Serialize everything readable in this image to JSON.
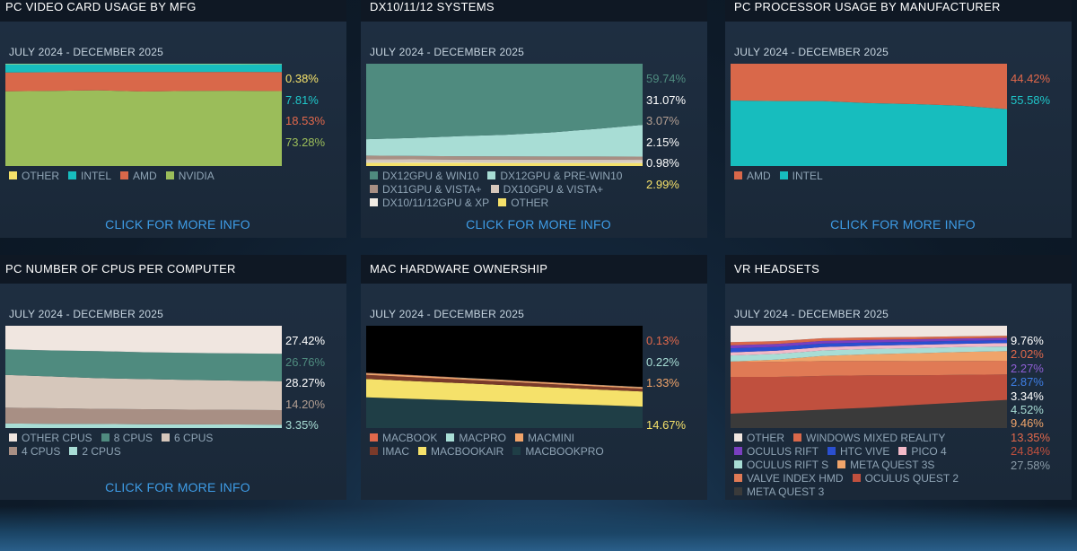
{
  "period": "JULY 2024 - DECEMBER 2025",
  "more_label": "CLICK FOR MORE INFO",
  "panels": [
    {
      "id": "p1",
      "title": "PC VIDEO CARD USAGE BY MFG",
      "show_more": true,
      "labels": [
        {
          "text": "0.38%",
          "color": "#f5e16a"
        },
        {
          "text": "7.81%",
          "color": "#1fc6c9"
        },
        {
          "text": "18.53%",
          "color": "#e0684b"
        },
        {
          "text": "73.28%",
          "color": "#9bbd5a"
        }
      ],
      "legend": [
        {
          "name": "OTHER",
          "color": "#f5e16a"
        },
        {
          "name": "INTEL",
          "color": "#17bdbe"
        },
        {
          "name": "AMD",
          "color": "#d9684a"
        },
        {
          "name": "NVIDIA",
          "color": "#9bbd5a"
        }
      ]
    },
    {
      "id": "p2",
      "title": "DX10/11/12 SYSTEMS",
      "show_more": true,
      "labels": [
        {
          "text": "59.74%",
          "color": "#4f8b7f"
        },
        {
          "text": "31.07%",
          "color": "#ffffff"
        },
        {
          "text": "3.07%",
          "color": "#b29e92"
        },
        {
          "text": "2.15%",
          "color": "#ffffff"
        },
        {
          "text": "0.98%",
          "color": "#ffffff"
        },
        {
          "text": "2.99%",
          "color": "#f5e16a"
        }
      ],
      "legend": [
        {
          "name": "DX12GPU & WIN10",
          "color": "#4f8b7f"
        },
        {
          "name": "DX12GPU & PRE-WIN10",
          "color": "#a8ddd5"
        },
        {
          "name": "DX11GPU & VISTA+",
          "color": "#a88f84"
        },
        {
          "name": "DX10GPU & VISTA+",
          "color": "#d6c7bb"
        },
        {
          "name": "DX10/11/12GPU & XP",
          "color": "#f1ebe4"
        },
        {
          "name": "OTHER",
          "color": "#f5e16a"
        }
      ]
    },
    {
      "id": "p3",
      "title": "PC PROCESSOR USAGE BY MANUFACTURER",
      "show_more": true,
      "labels": [
        {
          "text": "44.42%",
          "color": "#e0684b"
        },
        {
          "text": "55.58%",
          "color": "#1fc6c9"
        }
      ],
      "legend": [
        {
          "name": "AMD",
          "color": "#d9684a"
        },
        {
          "name": "INTEL",
          "color": "#17bdbe"
        }
      ]
    },
    {
      "id": "p4",
      "title": "PC NUMBER OF CPUS PER COMPUTER",
      "show_more": true,
      "labels": [
        {
          "text": "27.42%",
          "color": "#ffffff"
        },
        {
          "text": "26.76%",
          "color": "#4f8b7f"
        },
        {
          "text": "28.27%",
          "color": "#ffffff"
        },
        {
          "text": "14.20%",
          "color": "#b29e92"
        },
        {
          "text": "3.35%",
          "color": "#a8ddd5"
        }
      ],
      "legend": [
        {
          "name": "OTHER CPUS",
          "color": "#f0e6e0"
        },
        {
          "name": "8 CPUS",
          "color": "#4f8b7f"
        },
        {
          "name": "6 CPUS",
          "color": "#d6c7bb"
        },
        {
          "name": "4 CPUS",
          "color": "#a88f84"
        },
        {
          "name": "2 CPUS",
          "color": "#a8ddd5"
        }
      ]
    },
    {
      "id": "p5",
      "title": "MAC HARDWARE OWNERSHIP",
      "show_more": false,
      "labels": [
        {
          "text": "0.13%",
          "color": "#e0684b"
        },
        {
          "text": "0.22%",
          "color": "#a8ddd5"
        },
        {
          "text": "1.33%",
          "color": "#f0a46a"
        },
        {
          "text": "",
          "color": "#ffffff"
        },
        {
          "text": "14.67%",
          "color": "#f5e16a"
        }
      ],
      "legend": [
        {
          "name": "MACBOOK",
          "color": "#e0684b"
        },
        {
          "name": "MACPRO",
          "color": "#a8ddd5"
        },
        {
          "name": "MACMINI",
          "color": "#f0a46a"
        },
        {
          "name": "IMAC",
          "color": "#7a3a2a"
        },
        {
          "name": "MACBOOKAIR",
          "color": "#f5e16a"
        },
        {
          "name": "MACBOOKPRO",
          "color": "#1f3e46"
        }
      ]
    },
    {
      "id": "p6",
      "title": "VR HEADSETS",
      "show_more": false,
      "labels": [
        {
          "text": "9.76%",
          "color": "#ffffff"
        },
        {
          "text": "2.02%",
          "color": "#e0684b"
        },
        {
          "text": "2.27%",
          "color": "#8f5fd6"
        },
        {
          "text": "2.87%",
          "color": "#3e7fe6"
        },
        {
          "text": "3.34%",
          "color": "#ffffff"
        },
        {
          "text": "4.52%",
          "color": "#a8ddd5"
        },
        {
          "text": "9.46%",
          "color": "#f0a46a"
        },
        {
          "text": "13.35%",
          "color": "#e0684b"
        },
        {
          "text": "24.84%",
          "color": "#c0503e"
        },
        {
          "text": "27.58%",
          "color": "#8a9ba8"
        }
      ],
      "legend": [
        {
          "name": "OTHER",
          "color": "#f0e6e0"
        },
        {
          "name": "WINDOWS MIXED REALITY",
          "color": "#d9684a"
        },
        {
          "name": "OCULUS RIFT",
          "color": "#7a3fc0"
        },
        {
          "name": "HTC VIVE",
          "color": "#2a4fd0"
        },
        {
          "name": "PICO 4",
          "color": "#f2b9c8"
        },
        {
          "name": "OCULUS RIFT S",
          "color": "#a8ddd5"
        },
        {
          "name": "META QUEST 3S",
          "color": "#f0a46a"
        },
        {
          "name": "VALVE INDEX HMD",
          "color": "#e07a55"
        },
        {
          "name": "OCULUS QUEST 2",
          "color": "#c0503e"
        },
        {
          "name": "META QUEST 3",
          "color": "#3a3a3a"
        }
      ]
    }
  ],
  "chart_data": [
    {
      "type": "area",
      "stacked": true,
      "period": "JULY 2024 - DECEMBER 2025",
      "series": [
        {
          "name": "NVIDIA",
          "values": [
            73.0,
            73.5,
            74.0,
            72.8,
            73.5,
            73.6,
            73.28
          ],
          "color": "#9bbd5a"
        },
        {
          "name": "AMD",
          "values": [
            18.5,
            18.2,
            17.8,
            19.0,
            18.4,
            18.4,
            18.53
          ],
          "color": "#d9684a"
        },
        {
          "name": "INTEL",
          "values": [
            8.1,
            7.9,
            7.8,
            7.8,
            7.7,
            7.6,
            7.81
          ],
          "color": "#17bdbe"
        },
        {
          "name": "OTHER",
          "values": [
            0.4,
            0.4,
            0.4,
            0.4,
            0.4,
            0.4,
            0.38
          ],
          "color": "#f5e16a"
        }
      ]
    },
    {
      "type": "area",
      "stacked": true,
      "period": "JULY 2024 - DECEMBER 2025",
      "series": [
        {
          "name": "OTHER",
          "values": [
            3.2,
            3.1,
            3.1,
            3.0,
            3.0,
            3.0,
            2.99
          ],
          "color": "#f5e16a"
        },
        {
          "name": "DX10/11/12GPU & XP",
          "values": [
            1.1,
            1.1,
            1.0,
            1.0,
            1.0,
            1.0,
            0.98
          ],
          "color": "#f1ebe4"
        },
        {
          "name": "DX10GPU & VISTA+",
          "values": [
            2.5,
            2.4,
            2.3,
            2.3,
            2.2,
            2.2,
            2.15
          ],
          "color": "#d6c7bb"
        },
        {
          "name": "DX11GPU & VISTA+",
          "values": [
            3.4,
            3.3,
            3.2,
            3.2,
            3.1,
            3.1,
            3.07
          ],
          "color": "#a88f84"
        },
        {
          "name": "DX12GPU & PRE-WIN10",
          "values": [
            16.0,
            17.5,
            19.5,
            21.0,
            23.5,
            27.0,
            31.07
          ],
          "color": "#a8ddd5"
        },
        {
          "name": "DX12GPU & WIN10",
          "values": [
            73.8,
            72.6,
            70.9,
            69.5,
            67.2,
            63.7,
            59.74
          ],
          "color": "#4f8b7f"
        }
      ]
    },
    {
      "type": "area",
      "stacked": true,
      "period": "JULY 2024 - DECEMBER 2025",
      "series": [
        {
          "name": "INTEL",
          "values": [
            64.0,
            63.5,
            63.5,
            61.5,
            60.5,
            59.0,
            55.58
          ],
          "color": "#17bdbe"
        },
        {
          "name": "AMD",
          "values": [
            36.0,
            36.5,
            36.5,
            38.5,
            39.5,
            41.0,
            44.42
          ],
          "color": "#d9684a"
        }
      ]
    },
    {
      "type": "area",
      "stacked": true,
      "period": "JULY 2024 - DECEMBER 2025",
      "series": [
        {
          "name": "2 CPUS",
          "values": [
            4.5,
            4.2,
            4.0,
            3.8,
            3.6,
            3.5,
            3.35
          ],
          "color": "#a8ddd5"
        },
        {
          "name": "4 CPUS",
          "values": [
            15.5,
            15.2,
            14.8,
            14.6,
            14.4,
            14.3,
            14.2
          ],
          "color": "#a88f84"
        },
        {
          "name": "6 CPUS",
          "values": [
            32.0,
            31.0,
            30.0,
            29.5,
            29.0,
            28.6,
            28.27
          ],
          "color": "#d6c7bb"
        },
        {
          "name": "8 CPUS",
          "values": [
            25.0,
            25.5,
            26.5,
            26.2,
            26.5,
            26.6,
            26.76
          ],
          "color": "#4f8b7f"
        },
        {
          "name": "OTHER CPUS",
          "values": [
            23.0,
            24.1,
            24.7,
            25.9,
            26.5,
            27.0,
            27.42
          ],
          "color": "#f0e6e0"
        }
      ]
    },
    {
      "type": "area",
      "stacked": true,
      "period": "JULY 2024 - DECEMBER 2025",
      "series": [
        {
          "name": "MACBOOKPRO",
          "values": [
            30.0,
            28.5,
            27.0,
            25.5,
            24.0,
            22.5,
            21.0
          ],
          "color": "#1f3e46"
        },
        {
          "name": "MACBOOKAIR",
          "values": [
            18.0,
            17.5,
            17.0,
            16.5,
            15.8,
            15.2,
            14.67
          ],
          "color": "#f5e16a"
        },
        {
          "name": "IMAC",
          "values": [
            4.0,
            3.8,
            3.6,
            3.4,
            3.2,
            3.0,
            2.8
          ],
          "color": "#7a3a2a"
        },
        {
          "name": "MACMINI",
          "values": [
            1.5,
            1.5,
            1.4,
            1.4,
            1.4,
            1.3,
            1.33
          ],
          "color": "#f0a46a"
        },
        {
          "name": "MACPRO",
          "values": [
            0.3,
            0.3,
            0.3,
            0.2,
            0.2,
            0.2,
            0.22
          ],
          "color": "#a8ddd5"
        },
        {
          "name": "MACBOOK",
          "values": [
            0.2,
            0.2,
            0.2,
            0.2,
            0.1,
            0.1,
            0.13
          ],
          "color": "#e0684b"
        }
      ]
    },
    {
      "type": "area",
      "stacked": true,
      "period": "JULY 2024 - DECEMBER 2025",
      "series": [
        {
          "name": "META QUEST 3",
          "values": [
            14.0,
            16.0,
            18.0,
            20.0,
            22.5,
            25.0,
            27.58
          ],
          "color": "#3a3a3a"
        },
        {
          "name": "OCULUS QUEST 2",
          "values": [
            36.0,
            34.0,
            33.0,
            31.5,
            29.0,
            27.0,
            24.84
          ],
          "color": "#c0503e"
        },
        {
          "name": "VALVE INDEX HMD",
          "values": [
            15.0,
            14.8,
            14.5,
            14.2,
            13.9,
            13.6,
            13.35
          ],
          "color": "#e07a55"
        },
        {
          "name": "META QUEST 3S",
          "values": [
            0.0,
            2.0,
            5.0,
            6.5,
            7.8,
            8.8,
            9.46
          ],
          "color": "#f0a46a"
        },
        {
          "name": "OCULUS RIFT S",
          "values": [
            6.0,
            5.7,
            5.4,
            5.1,
            4.9,
            4.7,
            4.52
          ],
          "color": "#a8ddd5"
        },
        {
          "name": "PICO 4",
          "values": [
            3.0,
            3.1,
            3.2,
            3.2,
            3.3,
            3.3,
            3.34
          ],
          "color": "#f2b9c8"
        },
        {
          "name": "HTC VIVE",
          "values": [
            4.0,
            3.7,
            3.4,
            3.2,
            3.0,
            2.9,
            2.87
          ],
          "color": "#2a4fd0"
        },
        {
          "name": "OCULUS RIFT",
          "values": [
            3.0,
            2.9,
            2.7,
            2.5,
            2.4,
            2.3,
            2.27
          ],
          "color": "#7a3fc0"
        },
        {
          "name": "WINDOWS MIXED REALITY",
          "values": [
            3.0,
            2.8,
            2.6,
            2.4,
            2.2,
            2.1,
            2.02
          ],
          "color": "#d9684a"
        },
        {
          "name": "OTHER",
          "values": [
            16.0,
            15.0,
            12.2,
            11.4,
            11.0,
            10.3,
            9.76
          ],
          "color": "#f0e6e0"
        }
      ]
    }
  ]
}
